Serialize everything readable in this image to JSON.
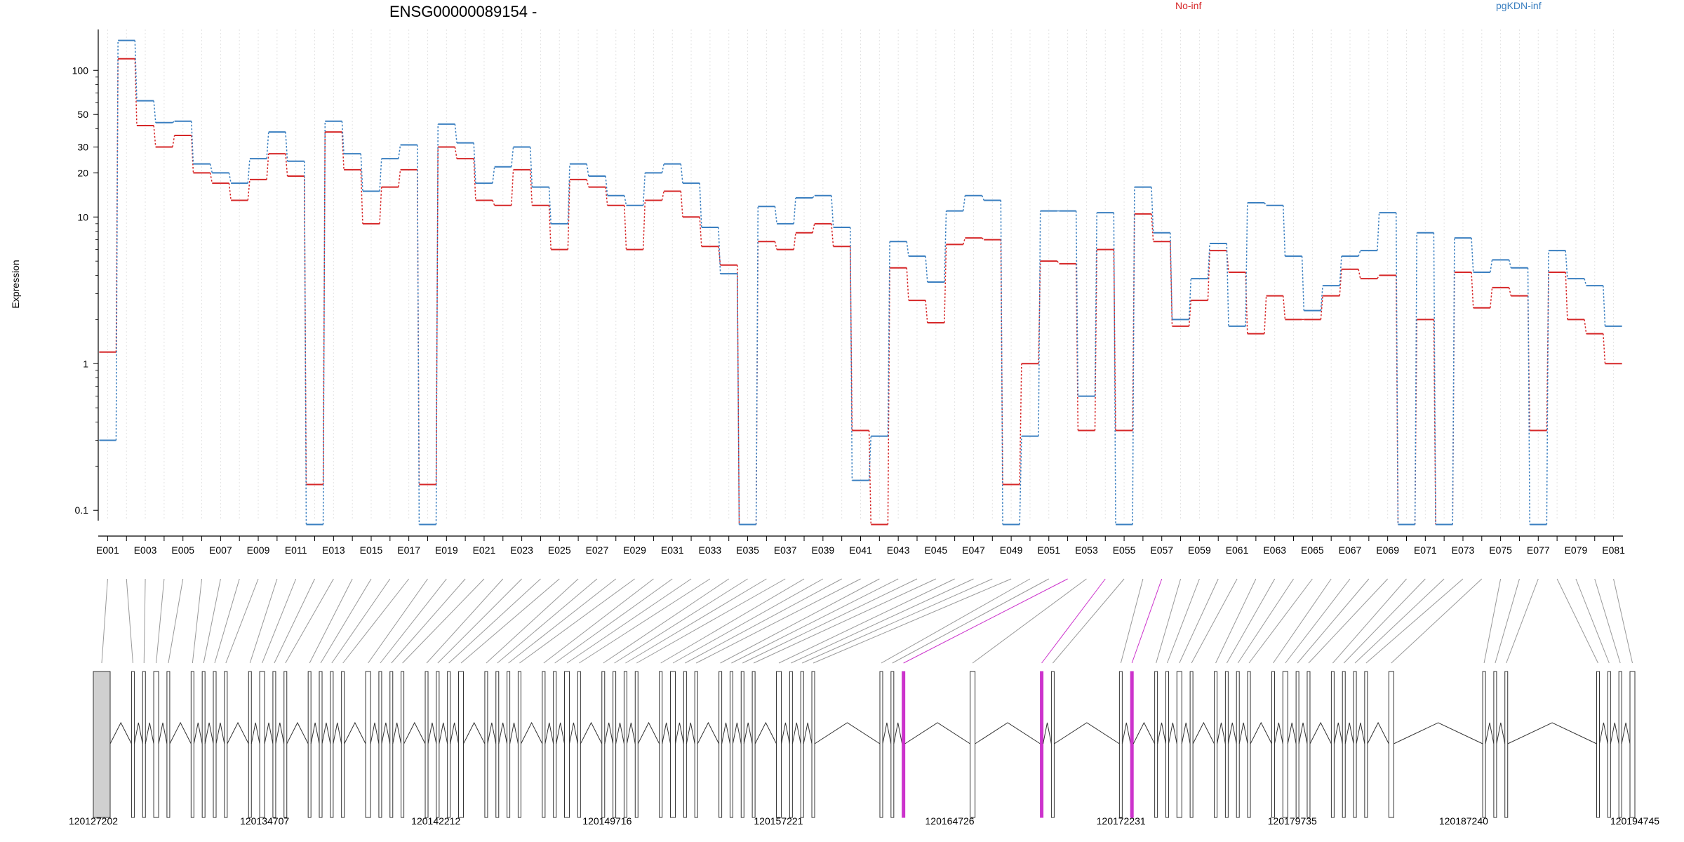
{
  "chart_data": {
    "type": "line",
    "title": "ENSG00000089154 -",
    "ylabel": "Expression",
    "y_scale": "log",
    "yticks": [
      0.1,
      1,
      10,
      20,
      30,
      50,
      100
    ],
    "ylim": [
      0.085,
      190
    ],
    "grid": "vertical dotted lines at each exon",
    "categories": [
      "E001",
      "E002",
      "E003",
      "E004",
      "E005",
      "E006",
      "E007",
      "E008",
      "E009",
      "E010",
      "E011",
      "E012",
      "E013",
      "E014",
      "E015",
      "E016",
      "E017",
      "E018",
      "E019",
      "E020",
      "E021",
      "E022",
      "E023",
      "E024",
      "E025",
      "E026",
      "E027",
      "E028",
      "E029",
      "E030",
      "E031",
      "E032",
      "E033",
      "E034",
      "E035",
      "E036",
      "E037",
      "E038",
      "E039",
      "E040",
      "E041",
      "E042",
      "E043",
      "E044",
      "E045",
      "E046",
      "E047",
      "E048",
      "E049",
      "E050",
      "E051",
      "E052",
      "E053",
      "E054",
      "E055",
      "E056",
      "E057",
      "E058",
      "E059",
      "E060",
      "E061",
      "E062",
      "E063",
      "E064",
      "E065",
      "E066",
      "E067",
      "E068",
      "E069",
      "E070",
      "E071",
      "E072",
      "E073",
      "E074",
      "E075",
      "E076",
      "E077",
      "E078",
      "E079",
      "E080",
      "E081"
    ],
    "tick_labels": [
      "E001",
      "E003",
      "E005",
      "E007",
      "E009",
      "E011",
      "E013",
      "E015",
      "E017",
      "E019",
      "E021",
      "E023",
      "E025",
      "E027",
      "E029",
      "E031",
      "E033",
      "E035",
      "E037",
      "E039",
      "E041",
      "E043",
      "E045",
      "E047",
      "E049",
      "E051",
      "E053",
      "E055",
      "E057",
      "E059",
      "E061",
      "E063",
      "E065",
      "E067",
      "E069",
      "E071",
      "E073",
      "E075",
      "E077",
      "E079",
      "E081"
    ],
    "series": [
      {
        "name": "No-inf",
        "color": "#d62728",
        "values": [
          1.2,
          120,
          42,
          30,
          36,
          20,
          17,
          13,
          18,
          27,
          19,
          0.15,
          38,
          21,
          9,
          16,
          21,
          0.15,
          30,
          25,
          13,
          12,
          21,
          12,
          6,
          18,
          16,
          12,
          6,
          13,
          15,
          10,
          6.3,
          4.7,
          0.08,
          6.8,
          6,
          7.8,
          9,
          6.3,
          0.35,
          0.08,
          4.5,
          2.7,
          1.9,
          6.5,
          7.2,
          7,
          0.15,
          1,
          5,
          4.8,
          0.35,
          6,
          0.35,
          10.5,
          6.8,
          1.8,
          2.7,
          5.9,
          4.2,
          1.6,
          2.9,
          2,
          2,
          2.9,
          4.4,
          3.8,
          4,
          0.08,
          2,
          0.08,
          4.2,
          2.4,
          3.3,
          2.9,
          0.35,
          4.2,
          2,
          1.6,
          1
        ]
      },
      {
        "name": "pgKDN-inf",
        "color": "#3a7fc0",
        "values": [
          0.3,
          160,
          62,
          44,
          45,
          23,
          20,
          17,
          25,
          38,
          24,
          0.08,
          45,
          27,
          15,
          25,
          31,
          0.08,
          43,
          32,
          17,
          22,
          30,
          16,
          9,
          23,
          19,
          14,
          12,
          20,
          23,
          17,
          8.5,
          4.1,
          0.08,
          11.8,
          9,
          13.5,
          14,
          8.5,
          0.16,
          0.32,
          6.8,
          5.4,
          3.6,
          11,
          14,
          13,
          0.08,
          0.32,
          11,
          11,
          0.6,
          10.7,
          0.08,
          16,
          7.8,
          2,
          3.8,
          6.6,
          1.8,
          12.5,
          12,
          5.4,
          2.3,
          3.4,
          5.4,
          5.9,
          10.7,
          0.08,
          7.8,
          0.08,
          7.2,
          4.2,
          5.1,
          4.5,
          0.08,
          5.9,
          3.8,
          3.4,
          1.8
        ]
      }
    ]
  },
  "gene_model": {
    "coordinate_labels": [
      "120127202",
      "120134707",
      "120142212",
      "120149716",
      "120157221",
      "120164726",
      "120172231",
      "120179735",
      "120187240",
      "120194745"
    ],
    "highlight_color": "#cc33cc",
    "highlighted_exons": [
      "E052",
      "E054",
      "E057"
    ]
  },
  "legend": {
    "items": [
      {
        "label": "No-inf",
        "color": "#d62728"
      },
      {
        "label": "pgKDN-inf",
        "color": "#3a7fc0"
      }
    ]
  }
}
